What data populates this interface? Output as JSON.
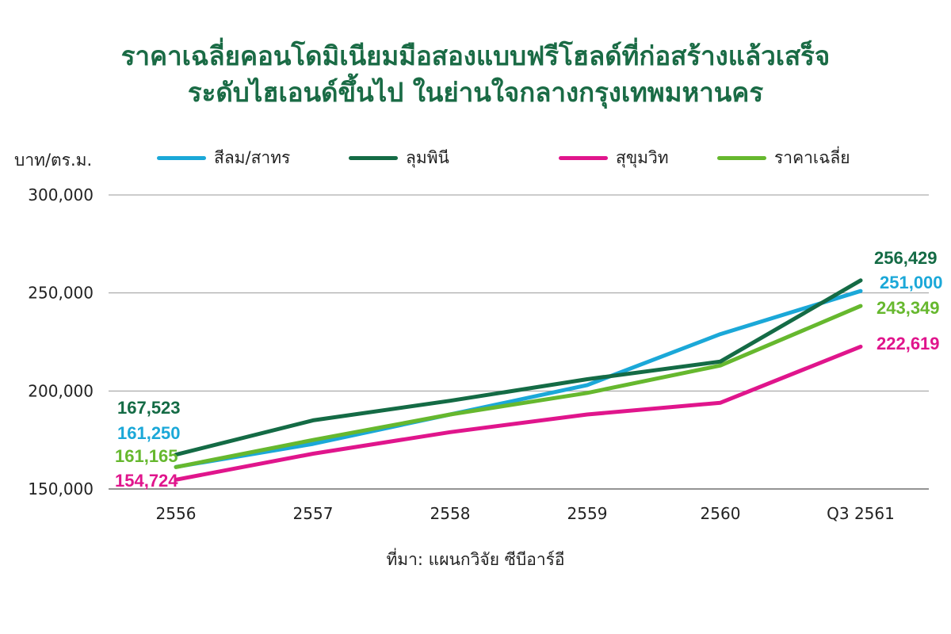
{
  "chart_data": {
    "type": "line",
    "title_line1": "ราคาเฉลี่ยคอนโดมิเนียมมือสองแบบฟรีโฮลด์ที่ก่อสร้างแล้วเสร็จ",
    "title_line2": "ระดับไฮเอนด์ขึ้นไป ในย่านใจกลางกรุงเทพมหานคร",
    "ylabel": "บาท/ตร.ม.",
    "source": "ที่มา: แผนกวิจัย ซีบีอาร์อี",
    "categories": [
      "2556",
      "2557",
      "2558",
      "2559",
      "2560",
      "Q3 2561"
    ],
    "ylim": [
      150000,
      300000
    ],
    "y_ticks": [
      "150,000",
      "200,000",
      "250,000",
      "300,000"
    ],
    "y_tick_values": [
      150000,
      200000,
      250000,
      300000
    ],
    "grid": true,
    "legend_position": "top",
    "series": [
      {
        "name": "สีลม/สาทร",
        "color": "#1ba8d8",
        "values": [
          161250,
          173000,
          188000,
          203000,
          229000,
          251000
        ],
        "start_label": "161,250",
        "end_label": "251,000"
      },
      {
        "name": "ลุมพินี",
        "color": "#146b45",
        "values": [
          167523,
          185000,
          195000,
          206000,
          215000,
          256429
        ],
        "start_label": "167,523",
        "end_label": "256,429"
      },
      {
        "name": "สุขุมวิท",
        "color": "#e0158c",
        "values": [
          154724,
          168000,
          179000,
          188000,
          194000,
          222619
        ],
        "start_label": "154,724",
        "end_label": "222,619"
      },
      {
        "name": "ราคาเฉลี่ย",
        "color": "#66b82e",
        "values": [
          161165,
          175000,
          188000,
          199000,
          213000,
          243349
        ],
        "start_label": "161,165",
        "end_label": "243,349"
      }
    ]
  }
}
